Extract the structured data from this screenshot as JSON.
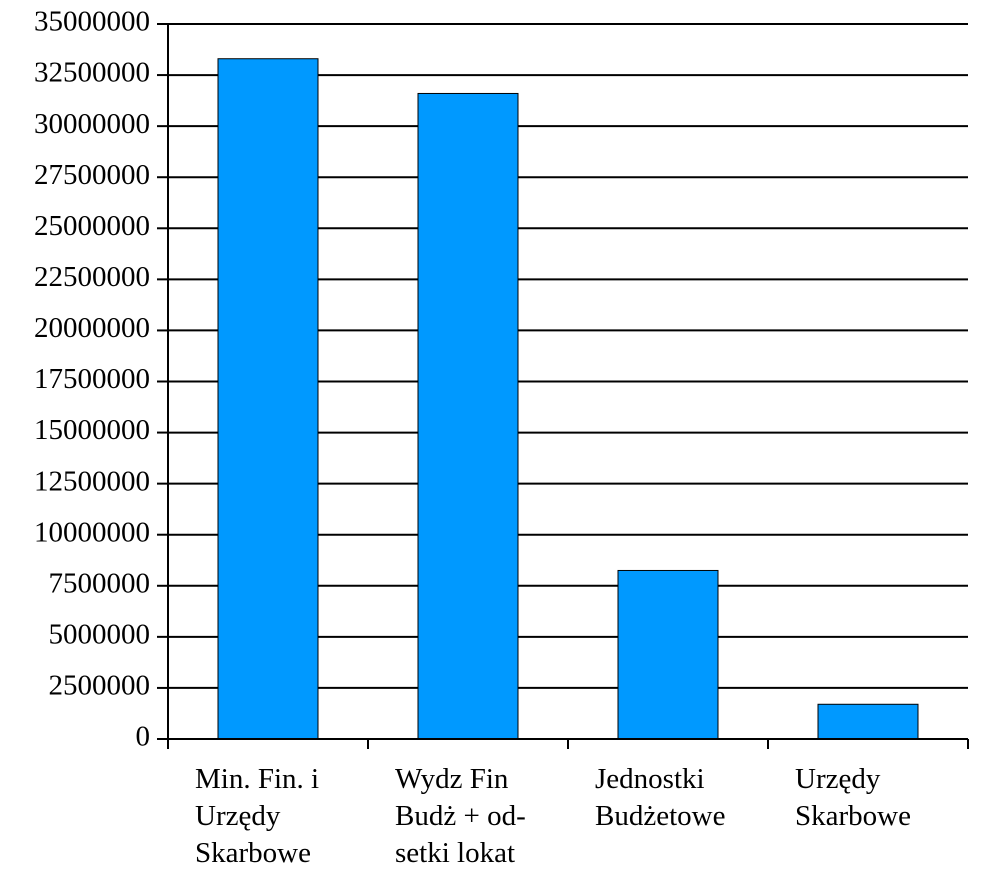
{
  "chart_data": {
    "type": "bar",
    "title": "",
    "xlabel": "",
    "ylabel": "",
    "categories": [
      [
        "Min. Fin. i",
        "Urzędy",
        "Skarbowe"
      ],
      [
        "Wydz Fin",
        "Budż + od-",
        "setki  lokat"
      ],
      [
        "Jednostki",
        "Budżetowe"
      ],
      [
        "Urzędy",
        "Skarbowe"
      ]
    ],
    "values": [
      33300000,
      31600000,
      8250000,
      1700000
    ],
    "ylim": [
      0,
      35000000
    ],
    "yticks": [
      "0",
      "2500000",
      "5000000",
      "7500000",
      "10000000",
      "12500000",
      "15000000",
      "17500000",
      "20000000",
      "22500000",
      "25000000",
      "27500000",
      "30000000",
      "32500000",
      "35000000"
    ],
    "ytick_values": [
      0,
      2500000,
      5000000,
      7500000,
      10000000,
      12500000,
      15000000,
      17500000,
      20000000,
      22500000,
      25000000,
      27500000,
      30000000,
      32500000,
      35000000
    ],
    "grid": true,
    "legend": "none",
    "bar_color": "#0099ff"
  }
}
